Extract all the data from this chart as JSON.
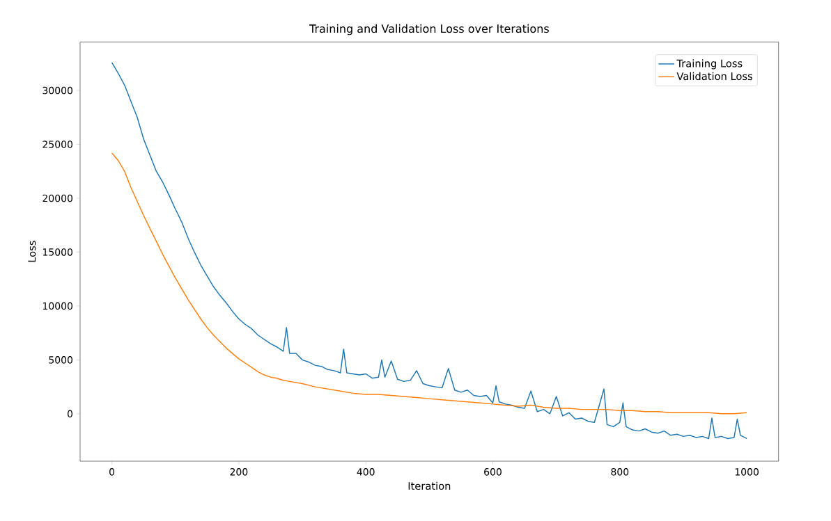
{
  "chart_data": {
    "type": "line",
    "title": "Training and Validation Loss over Iterations",
    "xlabel": "Iteration",
    "ylabel": "Loss",
    "xlim": [
      -50,
      1050
    ],
    "ylim": [
      -4400,
      34500
    ],
    "xticks": [
      0,
      200,
      400,
      600,
      800,
      1000
    ],
    "yticks": [
      0,
      5000,
      10000,
      15000,
      20000,
      25000,
      30000
    ],
    "legend": "top right",
    "grid": false,
    "series": [
      {
        "name": "Training Loss",
        "color": "#1f77b4",
        "x": [
          0,
          10,
          20,
          30,
          40,
          50,
          60,
          70,
          80,
          90,
          100,
          110,
          120,
          130,
          140,
          150,
          160,
          170,
          180,
          190,
          200,
          210,
          220,
          230,
          240,
          250,
          260,
          270,
          275,
          280,
          290,
          300,
          310,
          320,
          330,
          340,
          350,
          360,
          365,
          370,
          380,
          390,
          400,
          410,
          420,
          425,
          430,
          440,
          450,
          460,
          470,
          480,
          490,
          500,
          510,
          520,
          530,
          540,
          550,
          560,
          570,
          580,
          590,
          600,
          605,
          610,
          620,
          630,
          640,
          650,
          660,
          670,
          680,
          690,
          700,
          710,
          720,
          730,
          740,
          750,
          760,
          775,
          780,
          790,
          800,
          805,
          810,
          820,
          830,
          840,
          850,
          860,
          870,
          880,
          890,
          900,
          910,
          920,
          930,
          940,
          945,
          950,
          960,
          970,
          980,
          985,
          990,
          1000
        ],
        "values": [
          32600,
          31600,
          30500,
          29000,
          27500,
          25500,
          24000,
          22500,
          21500,
          20300,
          19000,
          17800,
          16300,
          15000,
          13800,
          12800,
          11800,
          11000,
          10300,
          9500,
          8800,
          8300,
          7900,
          7300,
          6900,
          6500,
          6200,
          5800,
          8000,
          5600,
          5600,
          5000,
          4800,
          4500,
          4400,
          4100,
          4000,
          3800,
          6000,
          3800,
          3700,
          3600,
          3700,
          3300,
          3400,
          5000,
          3400,
          4900,
          3200,
          3000,
          3100,
          4000,
          2800,
          2600,
          2500,
          2400,
          4200,
          2200,
          2000,
          2200,
          1700,
          1600,
          1700,
          1000,
          2600,
          1100,
          900,
          800,
          600,
          500,
          2100,
          200,
          400,
          0,
          1600,
          -200,
          100,
          -500,
          -400,
          -700,
          -800,
          2300,
          -1000,
          -1200,
          -800,
          1000,
          -1200,
          -1500,
          -1600,
          -1400,
          -1700,
          -1800,
          -1600,
          -2000,
          -1900,
          -2100,
          -2000,
          -2200,
          -2100,
          -2300,
          -400,
          -2200,
          -2100,
          -2300,
          -2200,
          -500,
          -2000,
          -2300
        ]
      },
      {
        "name": "Validation Loss",
        "color": "#ff7f0e",
        "x": [
          0,
          10,
          20,
          30,
          40,
          50,
          60,
          70,
          80,
          90,
          100,
          110,
          120,
          130,
          140,
          150,
          160,
          170,
          180,
          190,
          200,
          210,
          220,
          230,
          240,
          250,
          260,
          270,
          280,
          300,
          320,
          340,
          360,
          380,
          400,
          420,
          440,
          460,
          480,
          500,
          520,
          540,
          560,
          580,
          600,
          620,
          640,
          660,
          680,
          700,
          720,
          740,
          760,
          780,
          800,
          820,
          840,
          860,
          880,
          900,
          920,
          940,
          960,
          980,
          1000
        ],
        "values": [
          24200,
          23500,
          22500,
          21000,
          19700,
          18400,
          17200,
          16000,
          14800,
          13700,
          12600,
          11600,
          10600,
          9700,
          8800,
          8000,
          7300,
          6700,
          6100,
          5600,
          5100,
          4700,
          4300,
          3900,
          3600,
          3400,
          3300,
          3100,
          3000,
          2800,
          2500,
          2300,
          2100,
          1900,
          1800,
          1800,
          1700,
          1600,
          1500,
          1400,
          1300,
          1200,
          1100,
          1000,
          900,
          800,
          700,
          800,
          600,
          500,
          500,
          400,
          400,
          400,
          300,
          300,
          200,
          200,
          100,
          100,
          100,
          100,
          0,
          0,
          100
        ]
      }
    ]
  }
}
